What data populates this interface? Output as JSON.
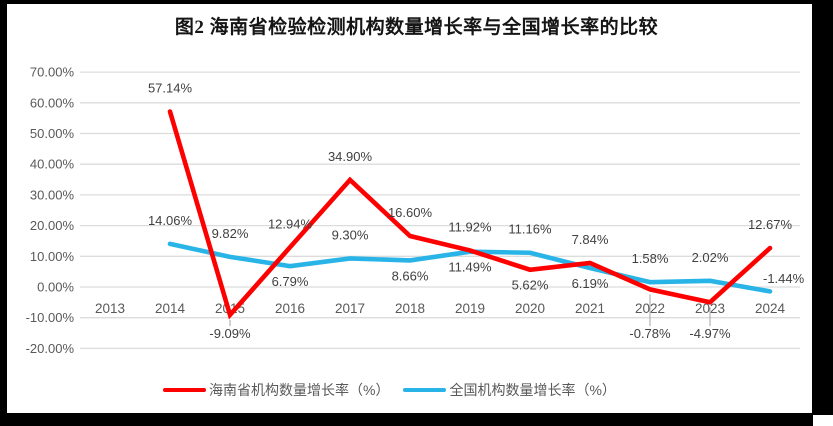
{
  "chart_data": {
    "type": "line",
    "title": "图2 海南省检验检测机构数量增长率与全国增长率的比较",
    "categories": [
      "2013",
      "2014",
      "2015",
      "2016",
      "2017",
      "2018",
      "2019",
      "2020",
      "2021",
      "2022",
      "2023",
      "2024"
    ],
    "series": [
      {
        "key": "hainan",
        "name": "海南省机构数量增长率（%）",
        "color": "#FE0000",
        "values": [
          null,
          57.14,
          -9.09,
          12.94,
          34.9,
          16.6,
          11.92,
          5.62,
          7.84,
          -0.78,
          -4.97,
          12.67
        ],
        "labels": [
          "",
          "57.14%",
          "-9.09%",
          "12.94%",
          "34.90%",
          "16.60%",
          "11.92%",
          "5.62%",
          "7.84%",
          "-0.78%",
          "-4.97%",
          "12.67%"
        ],
        "label_side": [
          "",
          "above",
          "below-leader",
          "above",
          "above",
          "above",
          "above",
          "below",
          "above",
          "below-leader",
          "below-leader",
          "above"
        ]
      },
      {
        "key": "national",
        "name": "全国机构数量增长率（%）",
        "color": "#29B4E8",
        "values": [
          null,
          14.06,
          9.82,
          6.79,
          9.3,
          8.66,
          11.49,
          11.16,
          6.19,
          1.58,
          2.02,
          -1.44
        ],
        "labels": [
          "",
          "14.06%",
          "9.82%",
          "6.79%",
          "9.30%",
          "8.66%",
          "11.49%",
          "11.16%",
          "6.19%",
          "1.58%",
          "2.02%",
          "-1.44%"
        ],
        "label_side": [
          "",
          "above",
          "above",
          "below",
          "above",
          "below",
          "below",
          "above",
          "below",
          "above",
          "above",
          "right"
        ]
      }
    ],
    "ylim": [
      -20,
      70
    ],
    "ytick_step": 10,
    "ytick_labels": [
      "70.00%",
      "60.00%",
      "50.00%",
      "40.00%",
      "30.00%",
      "20.00%",
      "10.00%",
      "0.00%",
      "-10.00%",
      "-20.00%"
    ],
    "grid": true,
    "legend_position": "bottom",
    "colors": {
      "grid": "#DCDCDC",
      "tick_text": "#595959",
      "label_text": "#404040",
      "leader": "#A6A6A6",
      "title_text": "#151515",
      "frame": "#000000"
    }
  }
}
